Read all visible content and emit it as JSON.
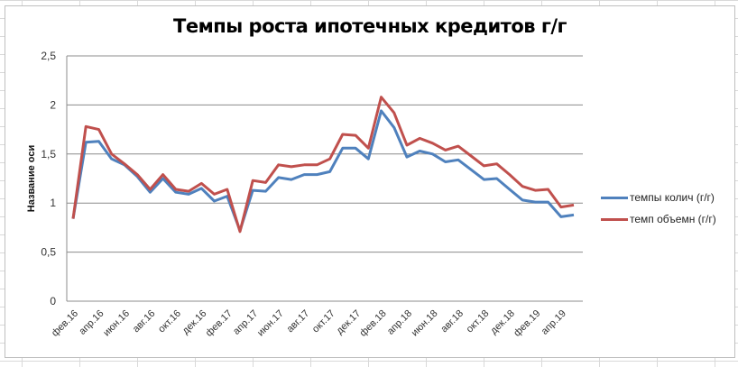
{
  "chart_data": {
    "type": "line",
    "title": "Темпы роста ипотечных кредитов г/г",
    "xlabel": "",
    "ylabel": "Название оси",
    "ylim": [
      0,
      2.5
    ],
    "yticks": [
      "0",
      "0,5",
      "1",
      "1,5",
      "2",
      "2,5"
    ],
    "grid": true,
    "legend_position": "right",
    "x_tick_labels": [
      "фев.16",
      "апр.16",
      "июн.16",
      "авг.16",
      "окт.16",
      "дек.16",
      "фев.17",
      "апр.17",
      "июн.17",
      "авг.17",
      "окт.17",
      "дек.17",
      "фев.18",
      "апр.18",
      "июн.18",
      "авг.18",
      "окт.18",
      "дек.18",
      "фев.19",
      "апр.19"
    ],
    "x": [
      "фев.16",
      "мар.16",
      "апр.16",
      "май.16",
      "июн.16",
      "июл.16",
      "авг.16",
      "сен.16",
      "окт.16",
      "ноя.16",
      "дек.16",
      "янв.17",
      "фев.17",
      "мар.17",
      "апр.17",
      "май.17",
      "июн.17",
      "июл.17",
      "авг.17",
      "сен.17",
      "окт.17",
      "ноя.17",
      "дек.17",
      "янв.18",
      "фев.18",
      "мар.18",
      "апр.18",
      "май.18",
      "июн.18",
      "июл.18",
      "авг.18",
      "сен.18",
      "окт.18",
      "ноя.18",
      "дек.18",
      "янв.19",
      "фев.19",
      "мар.19",
      "апр.19",
      "май.19"
    ],
    "series": [
      {
        "name": "темпы колич (г/г)",
        "color": "#4f81bd",
        "values": [
          0.84,
          1.62,
          1.63,
          1.45,
          1.39,
          1.27,
          1.11,
          1.25,
          1.11,
          1.09,
          1.15,
          1.02,
          1.07,
          0.72,
          1.13,
          1.12,
          1.26,
          1.24,
          1.29,
          1.29,
          1.32,
          1.56,
          1.56,
          1.45,
          1.94,
          1.77,
          1.47,
          1.53,
          1.5,
          1.42,
          1.44,
          1.34,
          1.24,
          1.25,
          1.14,
          1.03,
          1.01,
          1.01,
          0.86,
          0.88
        ]
      },
      {
        "name": "темп объемн (г/г)",
        "color": "#c0504d",
        "values": [
          0.84,
          1.78,
          1.75,
          1.5,
          1.4,
          1.29,
          1.14,
          1.29,
          1.14,
          1.12,
          1.2,
          1.09,
          1.14,
          0.71,
          1.23,
          1.21,
          1.39,
          1.37,
          1.39,
          1.39,
          1.45,
          1.7,
          1.69,
          1.56,
          2.08,
          1.92,
          1.59,
          1.66,
          1.61,
          1.54,
          1.58,
          1.48,
          1.38,
          1.4,
          1.29,
          1.17,
          1.13,
          1.14,
          0.96,
          0.98
        ]
      }
    ]
  }
}
